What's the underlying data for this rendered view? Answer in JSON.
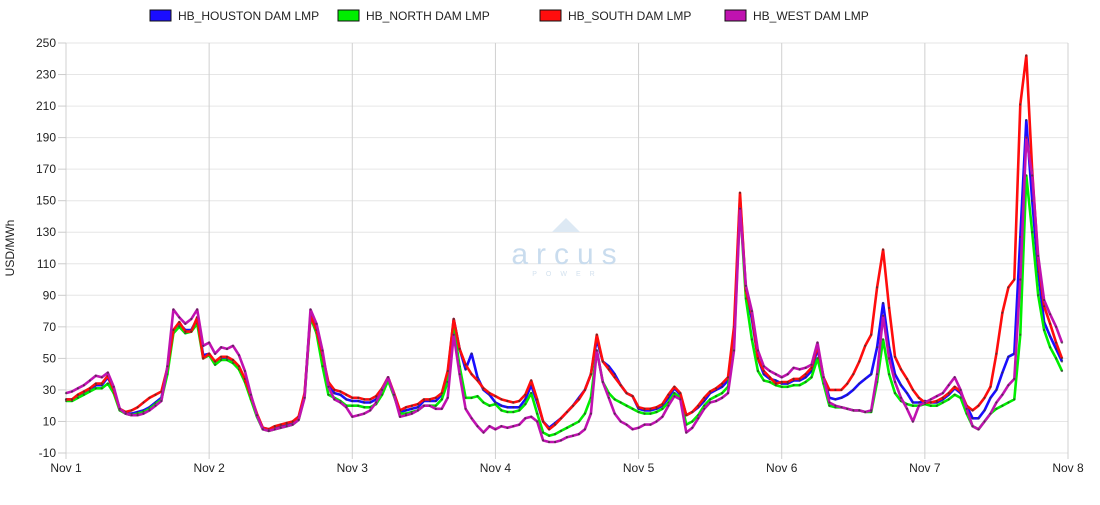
{
  "chart_data": {
    "type": "line",
    "title": "",
    "xlabel": "",
    "ylabel": "USD/MWh",
    "ylim": [
      -10,
      250
    ],
    "yticks": [
      -10,
      10,
      30,
      50,
      70,
      90,
      110,
      130,
      150,
      170,
      190,
      210,
      230,
      250
    ],
    "xtick_labels": [
      "Nov 1",
      "Nov 2",
      "Nov 3",
      "Nov 4",
      "Nov 5",
      "Nov 6",
      "Nov 7",
      "Nov 8"
    ],
    "x_resolution": "hourly",
    "grid": true,
    "legend_position": "top",
    "series": [
      {
        "name": "HB_HOUSTON DAM LMP",
        "color": "#1a0dff",
        "values": [
          24,
          24,
          26,
          28,
          30,
          33,
          33,
          38,
          30,
          18,
          15,
          15,
          16,
          17,
          19,
          22,
          25,
          42,
          68,
          72,
          68,
          68,
          75,
          52,
          53,
          47,
          50,
          50,
          48,
          44,
          36,
          25,
          14,
          6,
          5,
          6,
          7,
          8,
          9,
          12,
          27,
          78,
          68,
          50,
          33,
          28,
          27,
          24,
          23,
          23,
          22,
          22,
          24,
          30,
          38,
          27,
          16,
          17,
          18,
          19,
          23,
          23,
          23,
          27,
          40,
          75,
          56,
          43,
          53,
          38,
          30,
          27,
          22,
          20,
          19,
          19,
          19,
          24,
          33,
          22,
          10,
          6,
          9,
          12,
          16,
          20,
          25,
          30,
          40,
          62,
          48,
          45,
          40,
          33,
          28,
          26,
          18,
          17,
          17,
          18,
          20,
          25,
          31,
          27,
          14,
          16,
          19,
          23,
          28,
          30,
          32,
          36,
          62,
          152,
          92,
          75,
          50,
          40,
          37,
          36,
          34,
          34,
          36,
          36,
          38,
          42,
          56,
          38,
          25,
          24,
          25,
          27,
          30,
          34,
          37,
          40,
          57,
          85,
          57,
          40,
          33,
          28,
          22,
          22,
          23,
          22,
          22,
          24,
          27,
          31,
          28,
          20,
          12,
          12,
          17,
          25,
          30,
          41,
          51,
          53,
          127,
          201,
          150,
          105,
          73,
          64,
          56,
          48
        ]
      },
      {
        "name": "HB_NORTH DAM LMP",
        "color": "#00ee00",
        "values": [
          23,
          23,
          25,
          27,
          29,
          31,
          31,
          34,
          28,
          17,
          15,
          14,
          15,
          16,
          18,
          21,
          24,
          40,
          66,
          70,
          66,
          67,
          72,
          50,
          52,
          46,
          49,
          49,
          47,
          43,
          35,
          24,
          13,
          5,
          4,
          5,
          6,
          7,
          8,
          11,
          26,
          76,
          66,
          45,
          27,
          25,
          23,
          20,
          20,
          20,
          19,
          19,
          21,
          27,
          36,
          26,
          15,
          15,
          16,
          17,
          20,
          20,
          20,
          24,
          35,
          70,
          45,
          25,
          25,
          26,
          22,
          20,
          21,
          17,
          16,
          16,
          17,
          21,
          28,
          15,
          3,
          1,
          2,
          4,
          6,
          8,
          10,
          15,
          25,
          55,
          35,
          28,
          24,
          22,
          20,
          18,
          16,
          15,
          15,
          16,
          18,
          22,
          28,
          25,
          8,
          10,
          14,
          20,
          24,
          26,
          28,
          32,
          58,
          148,
          88,
          62,
          42,
          36,
          35,
          33,
          32,
          32,
          33,
          33,
          35,
          38,
          50,
          34,
          20,
          19,
          19,
          18,
          17,
          17,
          16,
          16,
          35,
          62,
          40,
          28,
          23,
          21,
          20,
          20,
          21,
          20,
          20,
          22,
          24,
          27,
          25,
          15,
          7,
          5,
          10,
          15,
          18,
          20,
          22,
          24,
          65,
          166,
          130,
          90,
          68,
          57,
          50,
          42
        ]
      },
      {
        "name": "HB_SOUTH DAM LMP",
        "color": "#ff0d0d",
        "values": [
          24,
          24,
          27,
          29,
          31,
          34,
          34,
          39,
          30,
          18,
          16,
          17,
          19,
          22,
          25,
          27,
          29,
          44,
          68,
          73,
          67,
          67,
          76,
          50,
          53,
          48,
          51,
          51,
          49,
          45,
          37,
          26,
          15,
          6,
          5,
          7,
          8,
          9,
          10,
          13,
          28,
          77,
          68,
          52,
          35,
          30,
          29,
          27,
          25,
          25,
          24,
          24,
          26,
          31,
          38,
          28,
          17,
          19,
          20,
          21,
          24,
          24,
          25,
          28,
          42,
          75,
          56,
          46,
          40,
          36,
          31,
          28,
          26,
          24,
          23,
          22,
          23,
          27,
          36,
          24,
          10,
          5,
          8,
          12,
          16,
          20,
          24,
          30,
          40,
          65,
          48,
          43,
          38,
          33,
          28,
          26,
          19,
          18,
          18,
          19,
          21,
          27,
          32,
          28,
          14,
          16,
          20,
          25,
          29,
          31,
          34,
          38,
          70,
          155,
          93,
          78,
          50,
          42,
          38,
          34,
          35,
          35,
          37,
          37,
          40,
          44,
          58,
          38,
          30,
          30,
          30,
          34,
          40,
          48,
          58,
          65,
          95,
          119,
          82,
          51,
          43,
          37,
          30,
          25,
          22,
          22,
          23,
          25,
          28,
          32,
          29,
          20,
          17,
          20,
          25,
          32,
          53,
          79,
          95,
          100,
          211,
          242,
          169,
          112,
          83,
          72,
          60,
          50
        ]
      },
      {
        "name": "HB_WEST DAM LMP",
        "color": "#c012b0",
        "values": [
          28,
          29,
          31,
          33,
          36,
          39,
          38,
          41,
          32,
          18,
          15,
          14,
          14,
          15,
          17,
          20,
          23,
          45,
          81,
          76,
          72,
          75,
          81,
          58,
          60,
          53,
          57,
          56,
          58,
          52,
          42,
          27,
          14,
          5,
          4,
          5,
          6,
          7,
          8,
          11,
          25,
          81,
          72,
          55,
          32,
          24,
          22,
          19,
          13,
          14,
          15,
          17,
          22,
          30,
          38,
          27,
          13,
          14,
          15,
          17,
          20,
          20,
          18,
          18,
          25,
          65,
          40,
          18,
          12,
          7,
          3,
          7,
          5,
          7,
          6,
          7,
          8,
          12,
          13,
          10,
          -2,
          -3,
          -3,
          -2,
          0,
          1,
          2,
          5,
          15,
          55,
          35,
          25,
          15,
          10,
          8,
          5,
          6,
          8,
          8,
          10,
          13,
          20,
          26,
          24,
          3,
          6,
          12,
          18,
          22,
          23,
          25,
          28,
          55,
          145,
          96,
          80,
          55,
          45,
          42,
          40,
          38,
          40,
          44,
          43,
          44,
          46,
          60,
          38,
          22,
          20,
          19,
          18,
          17,
          17,
          16,
          17,
          40,
          77,
          50,
          35,
          25,
          18,
          10,
          20,
          22,
          24,
          26,
          28,
          33,
          38,
          30,
          18,
          7,
          5,
          10,
          15,
          22,
          27,
          33,
          37,
          100,
          190,
          166,
          115,
          87,
          78,
          70,
          60
        ]
      }
    ]
  },
  "watermark": {
    "word": "arcus",
    "sub": "POWER",
    "color": "#c9dcee"
  }
}
